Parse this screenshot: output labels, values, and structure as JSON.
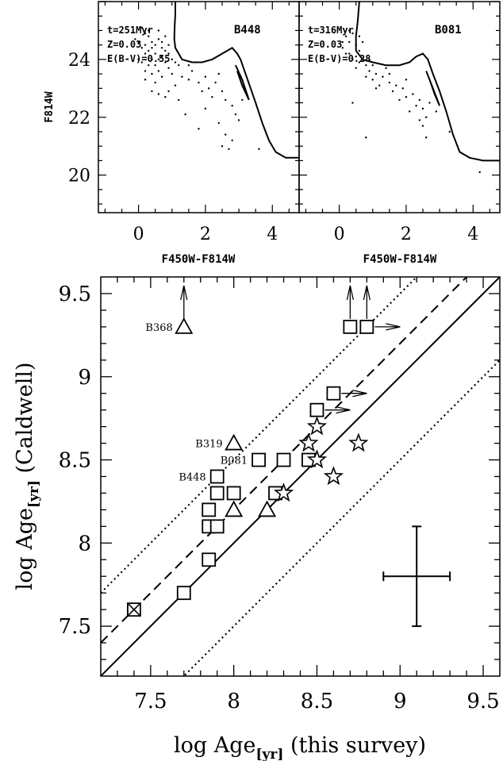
{
  "colors": {
    "ink": "#000000",
    "background": "#ffffff"
  },
  "chart_data": [
    {
      "type": "scatter",
      "id": "cmd_b448",
      "title": "B448",
      "annotations": [
        "t=251Myr",
        "Z=0.03",
        "E(B-V)=0.55"
      ],
      "xlabel": "F450W-F814W",
      "ylabel": "F814W",
      "xlim": [
        -1.2,
        4.8
      ],
      "ylim": [
        26.0,
        18.7
      ],
      "y_inverted": true,
      "xticks": [
        0,
        2,
        4
      ],
      "xticklabels": [
        "0",
        "2",
        "4"
      ],
      "yticks": [
        20,
        22,
        24
      ],
      "yticklabels": [
        "20",
        "22",
        "24"
      ],
      "isochrone": [
        [
          1.1,
          26.0
        ],
        [
          1.1,
          25.6
        ],
        [
          1.08,
          25.1
        ],
        [
          1.07,
          24.7
        ],
        [
          1.1,
          24.4
        ],
        [
          1.3,
          24.0
        ],
        [
          1.6,
          23.9
        ],
        [
          1.9,
          23.9
        ],
        [
          2.2,
          24.0
        ],
        [
          2.5,
          24.2
        ],
        [
          2.8,
          24.4
        ],
        [
          2.95,
          24.2
        ],
        [
          3.05,
          24.0
        ],
        [
          3.2,
          23.5
        ],
        [
          3.35,
          23.0
        ],
        [
          3.5,
          22.5
        ],
        [
          3.7,
          21.8
        ],
        [
          3.9,
          21.2
        ],
        [
          4.1,
          20.8
        ],
        [
          4.4,
          20.6
        ],
        [
          4.8,
          20.6
        ]
      ],
      "isochrone_branch": [
        [
          2.9,
          23.8
        ],
        [
          3.1,
          23.3
        ],
        [
          3.3,
          22.6
        ],
        [
          3.1,
          23.1
        ],
        [
          2.95,
          23.6
        ]
      ],
      "points": [
        [
          0.1,
          25.1
        ],
        [
          0.2,
          24.9
        ],
        [
          0.3,
          24.8
        ],
        [
          0.4,
          24.6
        ],
        [
          0.5,
          24.5
        ],
        [
          0.6,
          24.7
        ],
        [
          0.7,
          24.4
        ],
        [
          0.8,
          24.3
        ],
        [
          0.2,
          24.5
        ],
        [
          0.3,
          24.3
        ],
        [
          0.5,
          24.2
        ],
        [
          0.6,
          24.0
        ],
        [
          0.7,
          24.1
        ],
        [
          0.9,
          24.2
        ],
        [
          1.0,
          24.0
        ],
        [
          0.4,
          24.0
        ],
        [
          0.5,
          23.8
        ],
        [
          0.2,
          24.2
        ],
        [
          0.1,
          24.4
        ],
        [
          0.8,
          23.9
        ],
        [
          0.9,
          23.7
        ],
        [
          1.1,
          23.9
        ],
        [
          1.2,
          23.8
        ],
        [
          0.6,
          23.6
        ],
        [
          0.4,
          23.5
        ],
        [
          0.3,
          23.8
        ],
        [
          0.2,
          23.6
        ],
        [
          0.0,
          24.0
        ],
        [
          0.0,
          24.6
        ],
        [
          0.7,
          23.4
        ],
        [
          1.0,
          23.5
        ],
        [
          1.3,
          23.4
        ],
        [
          1.5,
          23.3
        ],
        [
          1.6,
          23.6
        ],
        [
          1.8,
          23.2
        ],
        [
          2.0,
          23.4
        ],
        [
          2.1,
          23.0
        ],
        [
          2.3,
          23.2
        ],
        [
          2.5,
          22.9
        ],
        [
          2.6,
          22.6
        ],
        [
          2.8,
          22.4
        ],
        [
          2.9,
          22.1
        ],
        [
          3.0,
          21.9
        ],
        [
          2.4,
          21.8
        ],
        [
          2.6,
          21.4
        ],
        [
          2.8,
          21.2
        ],
        [
          2.5,
          21.0
        ],
        [
          2.7,
          20.9
        ],
        [
          3.6,
          20.9
        ],
        [
          1.8,
          21.6
        ],
        [
          2.0,
          22.3
        ],
        [
          1.2,
          22.6
        ],
        [
          1.4,
          22.1
        ],
        [
          0.9,
          22.9
        ],
        [
          1.1,
          23.1
        ],
        [
          0.5,
          23.2
        ],
        [
          0.4,
          22.9
        ],
        [
          0.6,
          22.8
        ],
        [
          1.7,
          23.9
        ],
        [
          1.5,
          23.8
        ],
        [
          0.3,
          25.0
        ],
        [
          0.6,
          25.0
        ],
        [
          0.8,
          24.8
        ],
        [
          -0.1,
          24.7
        ],
        [
          0.4,
          24.4
        ],
        [
          0.9,
          24.5
        ],
        [
          0.7,
          24.6
        ],
        [
          0.1,
          23.9
        ],
        [
          0.2,
          23.3
        ],
        [
          0.8,
          22.7
        ],
        [
          2.2,
          22.7
        ],
        [
          2.4,
          23.5
        ],
        [
          1.9,
          22.9
        ],
        [
          3.1,
          22.6
        ]
      ]
    },
    {
      "type": "scatter",
      "id": "cmd_b081",
      "title": "B081",
      "annotations": [
        "t=316Myr",
        "Z=0.03",
        "E(B-V)=0.28"
      ],
      "xlabel": "F450W-F814W",
      "ylabel": "",
      "xlim": [
        -1.2,
        4.8
      ],
      "ylim": [
        26.0,
        18.7
      ],
      "y_inverted": true,
      "xticks": [
        0,
        2,
        4
      ],
      "xticklabels": [
        "0",
        "2",
        "4"
      ],
      "isochrone": [
        [
          0.6,
          26.0
        ],
        [
          0.55,
          25.3
        ],
        [
          0.5,
          24.8
        ],
        [
          0.5,
          24.3
        ],
        [
          0.7,
          24.0
        ],
        [
          1.0,
          23.9
        ],
        [
          1.4,
          23.8
        ],
        [
          1.8,
          23.8
        ],
        [
          2.1,
          23.9
        ],
        [
          2.3,
          24.1
        ],
        [
          2.5,
          24.2
        ],
        [
          2.65,
          24.0
        ],
        [
          2.8,
          23.5
        ],
        [
          3.0,
          22.9
        ],
        [
          3.2,
          22.2
        ],
        [
          3.4,
          21.4
        ],
        [
          3.6,
          20.8
        ],
        [
          3.9,
          20.6
        ],
        [
          4.3,
          20.5
        ],
        [
          4.8,
          20.5
        ]
      ],
      "isochrone_branch": [
        [
          2.6,
          23.6
        ],
        [
          2.8,
          23.0
        ],
        [
          3.0,
          22.4
        ],
        [
          2.85,
          22.8
        ],
        [
          2.7,
          23.3
        ]
      ],
      "points": [
        [
          0.2,
          24.8
        ],
        [
          0.3,
          24.6
        ],
        [
          0.5,
          24.5
        ],
        [
          0.6,
          24.3
        ],
        [
          0.3,
          24.2
        ],
        [
          0.4,
          24.0
        ],
        [
          0.6,
          23.9
        ],
        [
          0.8,
          23.8
        ],
        [
          0.9,
          23.6
        ],
        [
          1.1,
          23.5
        ],
        [
          1.3,
          23.4
        ],
        [
          1.5,
          23.2
        ],
        [
          1.7,
          23.1
        ],
        [
          1.9,
          23.0
        ],
        [
          2.0,
          23.3
        ],
        [
          2.2,
          22.8
        ],
        [
          2.4,
          22.6
        ],
        [
          2.3,
          22.4
        ],
        [
          2.5,
          22.3
        ],
        [
          2.6,
          22.0
        ],
        [
          2.4,
          21.9
        ],
        [
          2.7,
          22.5
        ],
        [
          2.1,
          22.2
        ],
        [
          1.8,
          22.6
        ],
        [
          1.6,
          22.9
        ],
        [
          1.2,
          23.1
        ],
        [
          1.0,
          23.3
        ],
        [
          0.8,
          23.4
        ],
        [
          0.5,
          23.7
        ],
        [
          0.2,
          24.2
        ],
        [
          0.1,
          24.6
        ],
        [
          0.4,
          24.9
        ],
        [
          0.7,
          24.6
        ],
        [
          0.5,
          24.1
        ],
        [
          0.9,
          24.0
        ],
        [
          1.0,
          23.8
        ],
        [
          1.4,
          23.7
        ],
        [
          2.5,
          21.7
        ],
        [
          2.6,
          21.3
        ],
        [
          3.3,
          21.5
        ],
        [
          4.2,
          20.1
        ],
        [
          0.8,
          21.3
        ],
        [
          0.4,
          22.5
        ],
        [
          2.9,
          22.2
        ],
        [
          1.5,
          23.5
        ],
        [
          2.0,
          22.7
        ],
        [
          0.6,
          24.8
        ],
        [
          0.3,
          25.0
        ],
        [
          0.1,
          24.4
        ],
        [
          1.1,
          23.0
        ]
      ]
    },
    {
      "type": "scatter",
      "id": "age_comparison",
      "xlabel_main": "log Age",
      "xlabel_sub": "[yr]",
      "xlabel_rest": " (this survey)",
      "ylabel_main": "log Age",
      "ylabel_sub": "[yr]",
      "ylabel_rest": " (Caldwell)",
      "xlim": [
        7.2,
        9.6
      ],
      "ylim": [
        7.2,
        9.6
      ],
      "xticks": [
        7.5,
        8,
        8.5,
        9,
        9.5
      ],
      "xticklabels": [
        "7.5",
        "8",
        "8.5",
        "9",
        "9.5"
      ],
      "yticks": [
        7.5,
        8,
        8.5,
        9,
        9.5
      ],
      "yticklabels": [
        "7.5",
        "8",
        "8.5",
        "9",
        "9.5"
      ],
      "lines": [
        {
          "style": "solid",
          "intercept": 0.0
        },
        {
          "style": "dashed",
          "intercept": 0.2
        },
        {
          "style": "dotted",
          "intercept": 0.5
        },
        {
          "style": "dotted",
          "intercept": -0.5
        }
      ],
      "error_cross": {
        "x": 9.1,
        "y": 7.8,
        "xerr": 0.2,
        "yerr": 0.3
      },
      "squares": [
        [
          7.4,
          7.6
        ],
        [
          7.7,
          7.7
        ],
        [
          7.85,
          7.9
        ],
        [
          7.85,
          8.1
        ],
        [
          7.9,
          8.1
        ],
        [
          7.85,
          8.2
        ],
        [
          7.9,
          8.3
        ],
        [
          7.9,
          8.4
        ],
        [
          8.0,
          8.3
        ],
        [
          8.15,
          8.5
        ],
        [
          8.3,
          8.5
        ],
        [
          8.25,
          8.3
        ],
        [
          8.45,
          8.5
        ],
        [
          8.5,
          8.8
        ],
        [
          8.6,
          8.9
        ],
        [
          8.7,
          9.3
        ],
        [
          8.8,
          9.3
        ]
      ],
      "triangles": [
        [
          7.7,
          9.3
        ],
        [
          8.0,
          8.6
        ],
        [
          8.0,
          8.2
        ],
        [
          8.2,
          8.2
        ]
      ],
      "stars": [
        [
          8.3,
          8.3
        ],
        [
          8.45,
          8.6
        ],
        [
          8.5,
          8.5
        ],
        [
          8.5,
          8.7
        ],
        [
          8.6,
          8.4
        ],
        [
          8.75,
          8.6
        ]
      ],
      "crossed_square": [
        7.4,
        7.6
      ],
      "labels": [
        {
          "text": "B368",
          "x": 7.7,
          "y": 9.3
        },
        {
          "text": "B319",
          "x": 8.0,
          "y": 8.6
        },
        {
          "text": "B081",
          "x": 8.15,
          "y": 8.5
        },
        {
          "text": "B448",
          "x": 7.9,
          "y": 8.4
        }
      ],
      "limit_arrows": [
        {
          "x": 7.7,
          "y": 9.3,
          "dir": "up"
        },
        {
          "x": 8.7,
          "y": 9.3,
          "dir": "up"
        },
        {
          "x": 8.8,
          "y": 9.3,
          "dir": "up"
        },
        {
          "x": 8.8,
          "y": 9.3,
          "dir": "right"
        },
        {
          "x": 8.6,
          "y": 8.9,
          "dir": "right"
        },
        {
          "x": 8.5,
          "y": 8.8,
          "dir": "right"
        }
      ]
    }
  ]
}
